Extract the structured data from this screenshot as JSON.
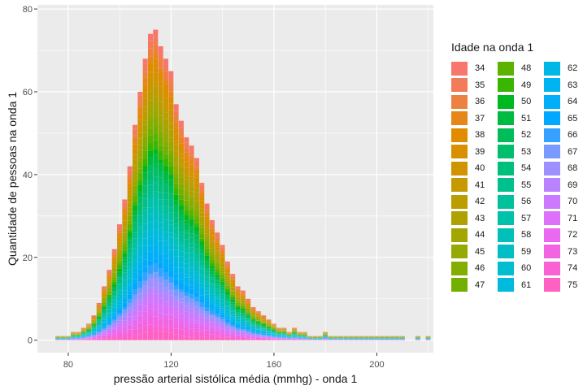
{
  "chart_data": {
    "type": "bar",
    "stacked": true,
    "title": "",
    "xlabel": "pressão arterial sistólica média (mmhg) - onda 1",
    "ylabel": "Quantidade de pessoas na onda 1",
    "xlim": [
      68,
      222
    ],
    "ylim": [
      -3,
      81
    ],
    "x_ticks": [
      80,
      120,
      160,
      200
    ],
    "y_ticks": [
      0,
      20,
      40,
      60,
      80
    ],
    "grid": true,
    "legend_position": "right",
    "legend_title": "Idade na onda 1",
    "legend_labels": [
      "34",
      "35",
      "36",
      "37",
      "38",
      "39",
      "40",
      "41",
      "42",
      "43",
      "44",
      "45",
      "46",
      "47",
      "48",
      "49",
      "50",
      "51",
      "52",
      "53",
      "54",
      "55",
      "56",
      "57",
      "58",
      "59",
      "60",
      "61",
      "62",
      "63",
      "64",
      "65",
      "66",
      "67",
      "68",
      "69",
      "70",
      "71",
      "72",
      "73",
      "74",
      "75"
    ],
    "legend_colors": [
      "#F8766D",
      "#F37B59",
      "#ED8141",
      "#E7861B",
      "#E08B00",
      "#D89000",
      "#CF9400",
      "#C59900",
      "#BB9D00",
      "#AFA100",
      "#A3A500",
      "#95A900",
      "#85AD00",
      "#72B000",
      "#5BB300",
      "#39B600",
      "#00B81F",
      "#00BA42",
      "#00BC59",
      "#00BE6C",
      "#00BF7D",
      "#00C08D",
      "#00C19C",
      "#00C1AA",
      "#00C0B8",
      "#00BFC4",
      "#00BDD0",
      "#00BBDB",
      "#00B8E5",
      "#00B4EF",
      "#00AFF8",
      "#00A9FF",
      "#35A2FF",
      "#7B9AFF",
      "#9E91FF",
      "#B983FF",
      "#CD79FF",
      "#DD71FA",
      "#E96AF0",
      "#F364E3",
      "#FA62D4",
      "#FF61C3"
    ],
    "histogram_totals": {
      "x": [
        76,
        78,
        80,
        82,
        84,
        86,
        88,
        90,
        92,
        94,
        96,
        98,
        100,
        102,
        104,
        106,
        108,
        110,
        112,
        114,
        116,
        118,
        120,
        122,
        124,
        126,
        128,
        130,
        132,
        134,
        136,
        138,
        140,
        142,
        144,
        146,
        148,
        150,
        152,
        154,
        156,
        158,
        160,
        162,
        164,
        166,
        168,
        170,
        172,
        174,
        176,
        178,
        180,
        182,
        184,
        186,
        188,
        190,
        192,
        194,
        196,
        198,
        200,
        202,
        204,
        206,
        208,
        210,
        212,
        214,
        216,
        218,
        220
      ],
      "y": [
        1,
        1,
        1,
        2,
        2,
        3,
        4,
        6,
        9,
        13,
        17,
        22,
        28,
        34,
        42,
        52,
        60,
        68,
        74,
        75,
        71,
        68,
        65,
        57,
        53,
        49,
        47,
        44,
        38,
        33,
        29,
        26,
        23,
        19,
        16,
        13,
        12,
        10,
        8,
        7,
        6,
        5,
        4,
        3,
        3,
        2,
        3,
        2,
        2,
        1,
        1,
        1,
        2,
        1,
        1,
        1,
        1,
        1,
        1,
        1,
        1,
        1,
        1,
        1,
        1,
        1,
        1,
        1,
        0,
        0,
        1,
        0,
        1
      ]
    }
  }
}
